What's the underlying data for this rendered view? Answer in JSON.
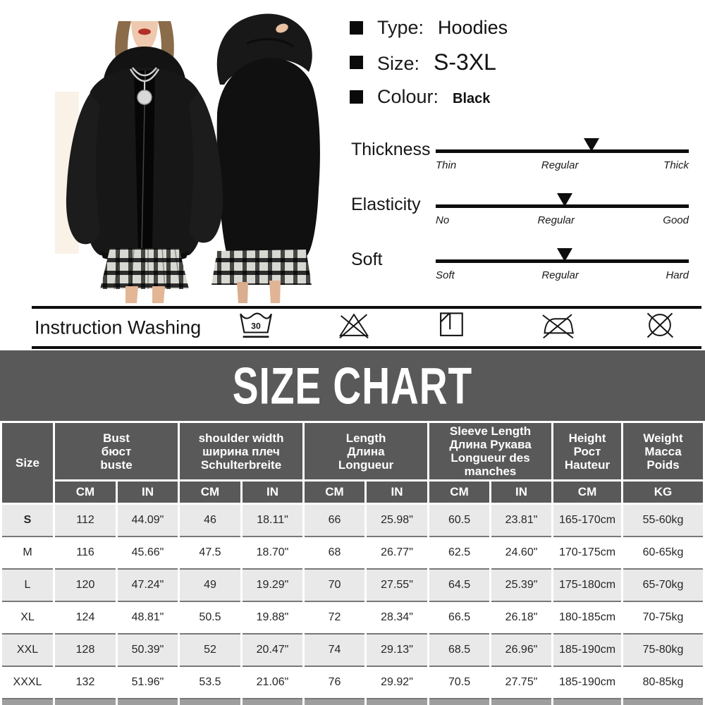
{
  "colors": {
    "header_bg": "#595959",
    "row_alt_bg": "#e9e9e9",
    "bottom_strip_bg": "#9e9e9e",
    "text": "#111111"
  },
  "product": {
    "attributes": [
      {
        "label": "Type:",
        "value": "Hoodies"
      },
      {
        "label": "Size:",
        "value": "S-3XL"
      },
      {
        "label": "Colour:",
        "value": "Black"
      }
    ],
    "sliders": [
      {
        "name": "Thickness",
        "left": "Thin",
        "center": "Regular",
        "right": "Thick",
        "marker_pct": 61.5
      },
      {
        "name": "Elasticity",
        "left": "No",
        "center": "Regular",
        "right": "Good",
        "marker_pct": 51
      },
      {
        "name": "Soft",
        "left": "Soft",
        "center": "Regular",
        "right": "Hard",
        "marker_pct": 51
      }
    ]
  },
  "washing": {
    "label": "Instruction Washing",
    "icons": [
      "machine-wash-30-icon",
      "do-not-bleach-icon",
      "dry-in-shade-icon",
      "do-not-iron-icon",
      "do-not-dry-clean-icon"
    ]
  },
  "size_chart": {
    "title": "SIZE CHART",
    "size_label": "Size",
    "groups": [
      {
        "lines": [
          "Bust",
          "бюст",
          "buste"
        ]
      },
      {
        "lines": [
          "shoulder width",
          "ширина плеч",
          "Schulterbreite"
        ]
      },
      {
        "lines": [
          "Length",
          "Длина",
          "Longueur"
        ]
      },
      {
        "lines": [
          "Sleeve Length",
          "Длина Рукава",
          "Longueur des",
          "manches"
        ]
      },
      {
        "lines": [
          "Height",
          "Рост",
          "Hauteur"
        ]
      },
      {
        "lines": [
          "Weight",
          "Масса",
          "Poids"
        ]
      }
    ],
    "units": [
      "CM",
      "IN",
      "CM",
      "IN",
      "CM",
      "IN",
      "CM",
      "IN",
      "CM",
      "KG"
    ],
    "rows": [
      {
        "size": "S",
        "cells": [
          "112",
          "44.09\"",
          "46",
          "18.11\"",
          "66",
          "25.98\"",
          "60.5",
          "23.81\"",
          "165-170cm",
          "55-60kg"
        ]
      },
      {
        "size": "M",
        "cells": [
          "116",
          "45.66\"",
          "47.5",
          "18.70\"",
          "68",
          "26.77\"",
          "62.5",
          "24.60\"",
          "170-175cm",
          "60-65kg"
        ]
      },
      {
        "size": "L",
        "cells": [
          "120",
          "47.24\"",
          "49",
          "19.29\"",
          "70",
          "27.55\"",
          "64.5",
          "25.39\"",
          "175-180cm",
          "65-70kg"
        ]
      },
      {
        "size": "XL",
        "cells": [
          "124",
          "48.81\"",
          "50.5",
          "19.88\"",
          "72",
          "28.34\"",
          "66.5",
          "26.18\"",
          "180-185cm",
          "70-75kg"
        ]
      },
      {
        "size": "XXL",
        "cells": [
          "128",
          "50.39\"",
          "52",
          "20.47\"",
          "74",
          "29.13\"",
          "68.5",
          "26.96\"",
          "185-190cm",
          "75-80kg"
        ]
      },
      {
        "size": "XXXL",
        "cells": [
          "132",
          "51.96\"",
          "53.5",
          "21.06\"",
          "76",
          "29.92\"",
          "70.5",
          "27.75\"",
          "185-190cm",
          "80-85kg"
        ]
      }
    ]
  }
}
